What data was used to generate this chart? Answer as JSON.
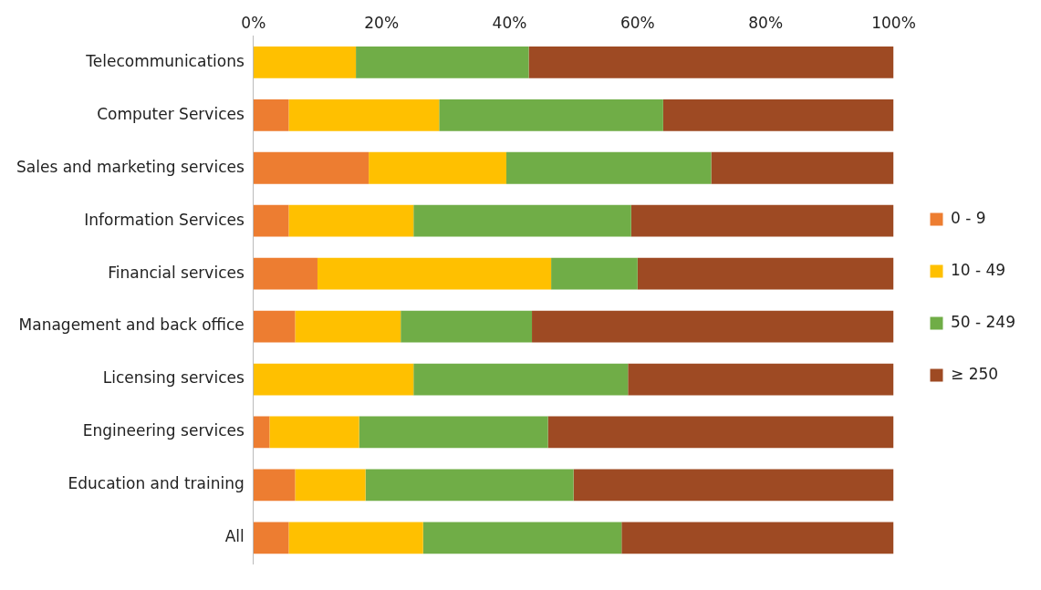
{
  "chart_data": {
    "type": "bar",
    "orientation": "horizontal",
    "stacked": true,
    "categories": [
      "Telecommunications",
      "Computer Services",
      "Sales and marketing services",
      "Information Services",
      "Financial services",
      "Management and back office",
      "Licensing services",
      "Engineering services",
      "Education and training",
      "All"
    ],
    "series": [
      {
        "name": "0 - 9",
        "color": "#ed7d31",
        "values": [
          0,
          5.5,
          18,
          5.5,
          10,
          6.5,
          0,
          2.5,
          6.5,
          5.5
        ]
      },
      {
        "name": "10 - 49",
        "color": "#ffc000",
        "values": [
          16,
          23.5,
          21.5,
          19.5,
          36.5,
          16.5,
          25,
          14,
          11,
          21
        ]
      },
      {
        "name": "50 - 249",
        "color": "#70ad47",
        "values": [
          27,
          35,
          32,
          34,
          13.5,
          20.5,
          33.5,
          29.5,
          32.5,
          31
        ]
      },
      {
        "name": "≥ 250",
        "color": "#9e4a23",
        "values": [
          57,
          36,
          28.5,
          41,
          40,
          56.5,
          41.5,
          54,
          50,
          42.5
        ]
      }
    ],
    "xlim": [
      0,
      100
    ],
    "xticks": [
      {
        "value": 0,
        "label": "0%"
      },
      {
        "value": 20,
        "label": "20%"
      },
      {
        "value": 40,
        "label": "40%"
      },
      {
        "value": 60,
        "label": "60%"
      },
      {
        "value": 80,
        "label": "80%"
      },
      {
        "value": 100,
        "label": "100%"
      }
    ],
    "grid": false,
    "legend": "right"
  }
}
